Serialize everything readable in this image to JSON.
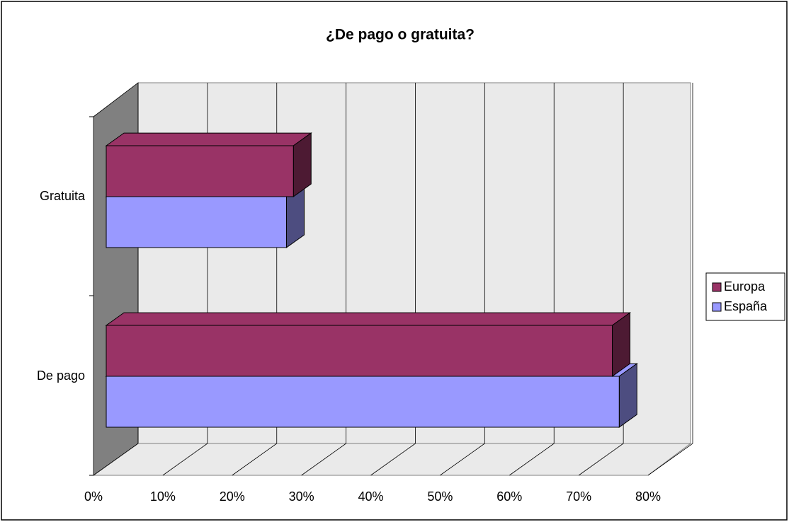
{
  "chart_data": {
    "type": "bar3d_horizontal",
    "title": "¿De pago o gratuita?",
    "categories": [
      "De pago",
      "Gratuita"
    ],
    "series": [
      {
        "name": "Europa",
        "color": "#993366",
        "values": [
          73,
          27
        ]
      },
      {
        "name": "España",
        "color": "#9999ff",
        "values": [
          74,
          26
        ]
      }
    ],
    "xlim": [
      0,
      80
    ],
    "xticks": [
      {
        "value": 0,
        "label": "0%"
      },
      {
        "value": 10,
        "label": "10%"
      },
      {
        "value": 20,
        "label": "20%"
      },
      {
        "value": 30,
        "label": "30%"
      },
      {
        "value": 40,
        "label": "40%"
      },
      {
        "value": 50,
        "label": "50%"
      },
      {
        "value": 60,
        "label": "60%"
      },
      {
        "value": 70,
        "label": "70%"
      },
      {
        "value": 80,
        "label": "80%"
      }
    ],
    "grid": true,
    "legend": "right"
  }
}
